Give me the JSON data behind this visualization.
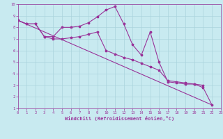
{
  "xlabel": "Windchill (Refroidissement éolien,°C)",
  "background_color": "#c8eaf0",
  "grid_color": "#aad4dc",
  "line_color": "#993399",
  "xlim": [
    0,
    23
  ],
  "ylim": [
    1,
    10
  ],
  "xticks": [
    0,
    1,
    2,
    3,
    4,
    5,
    6,
    7,
    8,
    9,
    10,
    11,
    12,
    13,
    14,
    15,
    16,
    17,
    18,
    19,
    20,
    21,
    22,
    23
  ],
  "yticks": [
    1,
    2,
    3,
    4,
    5,
    6,
    7,
    8,
    9,
    10
  ],
  "line1_x": [
    0,
    1,
    2,
    3,
    4,
    5,
    6,
    7,
    8,
    9,
    10,
    11,
    12,
    13,
    14,
    15,
    16,
    17,
    18,
    19,
    20,
    21,
    22
  ],
  "line1_y": [
    8.6,
    8.3,
    8.3,
    7.2,
    7.2,
    8.0,
    8.0,
    8.1,
    8.4,
    8.9,
    9.5,
    9.8,
    8.3,
    6.5,
    5.6,
    7.6,
    5.0,
    3.3,
    3.2,
    3.1,
    3.1,
    2.8,
    1.3
  ],
  "line2_x": [
    0,
    1,
    2,
    3,
    4,
    5,
    6,
    7,
    8,
    9,
    10,
    11,
    12,
    13,
    14,
    15,
    16,
    17,
    18,
    19,
    20,
    21
  ],
  "line2_y": [
    8.6,
    8.3,
    8.3,
    7.2,
    7.0,
    7.0,
    7.1,
    7.2,
    7.4,
    7.6,
    6.0,
    5.7,
    5.4,
    5.2,
    4.9,
    4.6,
    4.3,
    3.4,
    3.3,
    3.2,
    3.1,
    3.0
  ],
  "line3_x": [
    0,
    22
  ],
  "line3_y": [
    8.6,
    1.3
  ]
}
